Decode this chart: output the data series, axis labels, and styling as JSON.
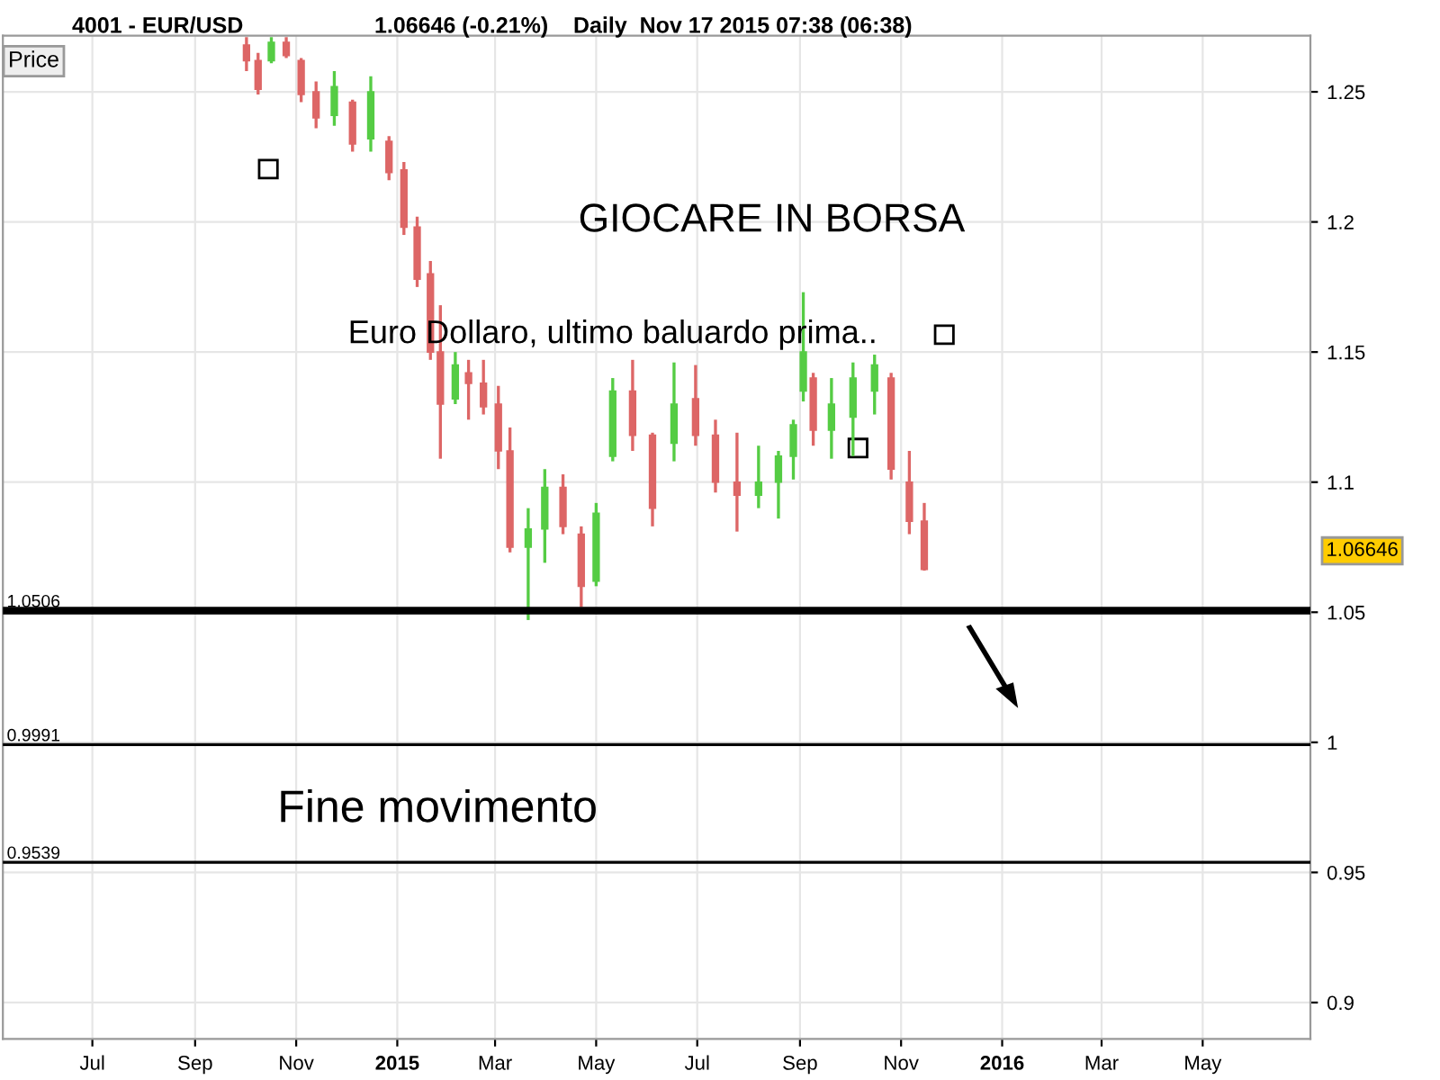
{
  "chart_data": {
    "type": "candlestick",
    "title": "4001 - EUR/USD",
    "subtitle": "1.06646 (-0.21%)    Daily  Nov 17 2015 07:38 (06:38)",
    "x": [
      "2014-10-02",
      "2014-10-09",
      "2014-10-17",
      "2014-10-26",
      "2014-11-04",
      "2014-11-13",
      "2014-11-24",
      "2014-12-05",
      "2014-12-16",
      "2014-12-27",
      "2015-01-05",
      "2015-01-13",
      "2015-01-21",
      "2015-01-27",
      "2015-02-05",
      "2015-02-13",
      "2015-02-22",
      "2015-03-03",
      "2015-03-10",
      "2015-03-21",
      "2015-03-31",
      "2015-04-11",
      "2015-04-22",
      "2015-05-01",
      "2015-05-11",
      "2015-05-23",
      "2015-06-04",
      "2015-06-17",
      "2015-06-30",
      "2015-07-12",
      "2015-07-25",
      "2015-08-07",
      "2015-08-19",
      "2015-08-28",
      "2015-09-03",
      "2015-09-09",
      "2015-09-20",
      "2015-10-03",
      "2015-10-16",
      "2015-10-26",
      "2015-11-06",
      "2015-11-15"
    ],
    "ohlc": [
      [
        1.268,
        1.271,
        1.258,
        1.262
      ],
      [
        1.262,
        1.265,
        1.249,
        1.251
      ],
      [
        1.262,
        1.271,
        1.261,
        1.269
      ],
      [
        1.269,
        1.271,
        1.263,
        1.264
      ],
      [
        1.262,
        1.263,
        1.246,
        1.249
      ],
      [
        1.25,
        1.254,
        1.236,
        1.24
      ],
      [
        1.241,
        1.258,
        1.237,
        1.252
      ],
      [
        1.246,
        1.247,
        1.227,
        1.23
      ],
      [
        1.232,
        1.256,
        1.227,
        1.25
      ],
      [
        1.231,
        1.233,
        1.216,
        1.219
      ],
      [
        1.22,
        1.223,
        1.195,
        1.198
      ],
      [
        1.198,
        1.202,
        1.175,
        1.178
      ],
      [
        1.18,
        1.185,
        1.147,
        1.15
      ],
      [
        1.15,
        1.168,
        1.109,
        1.13
      ],
      [
        1.132,
        1.15,
        1.13,
        1.145
      ],
      [
        1.142,
        1.147,
        1.124,
        1.138
      ],
      [
        1.138,
        1.147,
        1.126,
        1.129
      ],
      [
        1.13,
        1.137,
        1.105,
        1.112
      ],
      [
        1.112,
        1.121,
        1.073,
        1.075
      ],
      [
        1.075,
        1.09,
        1.047,
        1.082
      ],
      [
        1.082,
        1.105,
        1.069,
        1.098
      ],
      [
        1.098,
        1.103,
        1.08,
        1.083
      ],
      [
        1.08,
        1.083,
        1.052,
        1.06
      ],
      [
        1.062,
        1.092,
        1.06,
        1.088
      ],
      [
        1.11,
        1.14,
        1.108,
        1.135
      ],
      [
        1.135,
        1.147,
        1.112,
        1.118
      ],
      [
        1.118,
        1.119,
        1.083,
        1.09
      ],
      [
        1.115,
        1.146,
        1.108,
        1.13
      ],
      [
        1.132,
        1.145,
        1.114,
        1.118
      ],
      [
        1.118,
        1.124,
        1.096,
        1.1
      ],
      [
        1.1,
        1.119,
        1.081,
        1.095
      ],
      [
        1.095,
        1.114,
        1.09,
        1.1
      ],
      [
        1.1,
        1.112,
        1.086,
        1.11
      ],
      [
        1.11,
        1.124,
        1.101,
        1.122
      ],
      [
        1.135,
        1.173,
        1.131,
        1.15
      ],
      [
        1.14,
        1.142,
        1.114,
        1.12
      ],
      [
        1.12,
        1.14,
        1.109,
        1.13
      ],
      [
        1.125,
        1.146,
        1.11,
        1.14
      ],
      [
        1.135,
        1.149,
        1.126,
        1.145
      ],
      [
        1.14,
        1.142,
        1.101,
        1.105
      ],
      [
        1.1,
        1.112,
        1.08,
        1.085
      ],
      [
        1.085,
        1.092,
        1.066,
        1.06646
      ]
    ],
    "colors": [
      "#dd6666",
      "#dd6666",
      "#55cc44",
      "#dd6666",
      "#dd6666",
      "#dd6666",
      "#55cc44",
      "#dd6666",
      "#55cc44",
      "#dd6666",
      "#dd6666",
      "#dd6666",
      "#dd6666",
      "#dd6666",
      "#55cc44",
      "#dd6666",
      "#dd6666",
      "#dd6666",
      "#dd6666",
      "#55cc44",
      "#55cc44",
      "#dd6666",
      "#dd6666",
      "#55cc44",
      "#55cc44",
      "#dd6666",
      "#dd6666",
      "#55cc44",
      "#dd6666",
      "#dd6666",
      "#dd6666",
      "#55cc44",
      "#55cc44",
      "#55cc44",
      "#55cc44",
      "#dd6666",
      "#55cc44",
      "#55cc44",
      "#55cc44",
      "#dd6666",
      "#dd6666",
      "#dd6666"
    ],
    "xlim": [
      "2014-05-08",
      "2016-07-05"
    ],
    "xticks": [
      {
        "value": "2014-07-01",
        "label": "Jul"
      },
      {
        "value": "2014-09-01",
        "label": "Sep"
      },
      {
        "value": "2014-11-01",
        "label": "Nov"
      },
      {
        "value": "2015-01-01",
        "label": "2015"
      },
      {
        "value": "2015-03-01",
        "label": "Mar"
      },
      {
        "value": "2015-05-01",
        "label": "May"
      },
      {
        "value": "2015-07-01",
        "label": "Jul"
      },
      {
        "value": "2015-09-01",
        "label": "Sep"
      },
      {
        "value": "2015-11-01",
        "label": "Nov"
      },
      {
        "value": "2016-01-01",
        "label": "2016"
      },
      {
        "value": "2016-03-01",
        "label": "Mar"
      },
      {
        "value": "2016-05-01",
        "label": "May"
      }
    ],
    "ylim": [
      0.886,
      1.2716
    ],
    "yticks": [
      0.9,
      0.95,
      1,
      1.05,
      1.1,
      1.15,
      1.2,
      1.25
    ],
    "grid": true,
    "ref_lines": [
      {
        "axis": "y",
        "value": 1.0506,
        "label": "1.0506",
        "color": "#000000"
      },
      {
        "axis": "y",
        "value": 0.9991,
        "label": "0.9991",
        "color": "#000000"
      },
      {
        "axis": "y",
        "value": 0.9539,
        "label": "0.9539",
        "color": "#000000"
      }
    ],
    "annotations": [
      "Price",
      "GIOCARE IN BORSA",
      "Euro Dollaro, ultimo baluardo prima..",
      "Fine movimento",
      "1.06646"
    ]
  }
}
